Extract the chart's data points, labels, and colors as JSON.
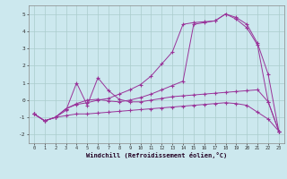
{
  "xlabel": "Windchill (Refroidissement éolien,°C)",
  "background_color": "#cce8ee",
  "grid_color": "#aacccc",
  "line_color": "#993399",
  "xlim": [
    -0.5,
    23.5
  ],
  "ylim": [
    -2.5,
    5.5
  ],
  "line1_x": [
    0,
    1,
    2,
    3,
    4,
    5,
    6,
    7,
    8,
    9,
    10,
    11,
    12,
    13,
    14,
    15,
    16,
    17,
    18,
    19,
    20,
    21,
    22,
    23
  ],
  "line1_y": [
    -0.8,
    -1.2,
    -1.0,
    -0.9,
    -0.8,
    -0.8,
    -0.75,
    -0.7,
    -0.65,
    -0.6,
    -0.55,
    -0.5,
    -0.45,
    -0.4,
    -0.35,
    -0.3,
    -0.25,
    -0.2,
    -0.15,
    -0.2,
    -0.3,
    -0.7,
    -1.1,
    -1.8
  ],
  "line2_x": [
    0,
    1,
    2,
    3,
    4,
    5,
    6,
    7,
    8,
    9,
    10,
    11,
    12,
    13,
    14,
    15,
    16,
    17,
    18,
    19,
    20,
    21,
    22,
    23
  ],
  "line2_y": [
    -0.8,
    -1.2,
    -1.0,
    -0.6,
    1.0,
    -0.3,
    1.3,
    0.55,
    0.05,
    -0.1,
    -0.1,
    0.0,
    0.1,
    0.2,
    0.25,
    0.3,
    0.35,
    0.4,
    0.45,
    0.5,
    0.55,
    0.6,
    -0.1,
    -1.8
  ],
  "line3_x": [
    0,
    1,
    2,
    3,
    4,
    5,
    6,
    7,
    8,
    9,
    10,
    11,
    12,
    13,
    14,
    15,
    16,
    17,
    18,
    19,
    20,
    21,
    22,
    23
  ],
  "line3_y": [
    -0.8,
    -1.2,
    -1.0,
    -0.5,
    -0.25,
    -0.15,
    0.0,
    0.1,
    0.35,
    0.6,
    0.9,
    1.4,
    2.1,
    2.8,
    4.4,
    4.5,
    4.55,
    4.6,
    5.0,
    4.8,
    4.4,
    3.3,
    1.5,
    -1.8
  ],
  "line4_x": [
    0,
    1,
    2,
    3,
    4,
    5,
    6,
    7,
    8,
    9,
    10,
    11,
    12,
    13,
    14,
    15,
    16,
    17,
    18,
    19,
    20,
    21,
    22,
    23
  ],
  "line4_y": [
    -0.8,
    -1.2,
    -1.0,
    -0.5,
    -0.2,
    0.0,
    0.05,
    -0.05,
    -0.1,
    0.0,
    0.15,
    0.35,
    0.6,
    0.85,
    1.1,
    4.4,
    4.5,
    4.6,
    5.0,
    4.7,
    4.2,
    3.2,
    -0.1,
    -1.8
  ]
}
